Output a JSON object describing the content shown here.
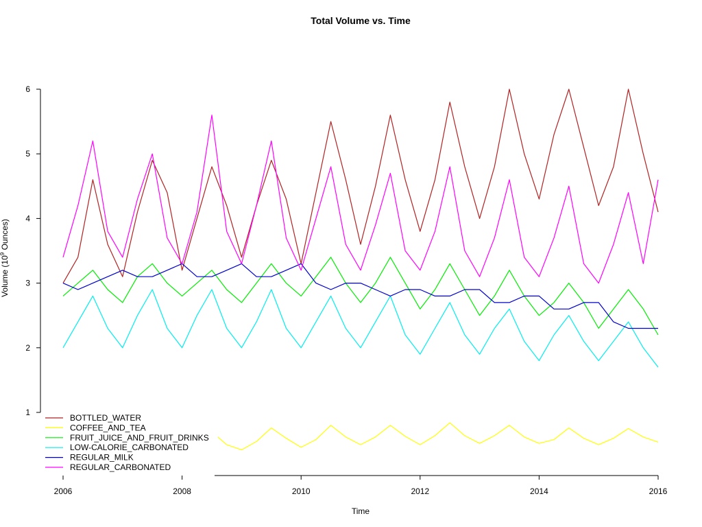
{
  "chart_data": {
    "type": "line",
    "title": "Total Volume vs. Time",
    "xlabel": "Time",
    "ylabel_prefix": "Volume (10",
    "ylabel_exp": "9",
    "ylabel_suffix": " Ounces)",
    "x_ticks": [
      "2006",
      "2008",
      "2010",
      "2012",
      "2014",
      "2016"
    ],
    "y_ticks": [
      "1",
      "2",
      "3",
      "4",
      "5",
      "6"
    ],
    "xlim": [
      2006,
      2016
    ],
    "ylim": [
      1,
      6
    ],
    "legend_position": "bottom-left",
    "series": [
      {
        "name": "BOTTLED_WATER",
        "color": "#b22222",
        "x": [
          2006.0,
          2006.25,
          2006.5,
          2006.75,
          2007.0,
          2007.25,
          2007.5,
          2007.75,
          2008.0,
          2008.25,
          2008.5,
          2008.75,
          2009.0,
          2009.25,
          2009.5,
          2009.75,
          2010.0,
          2010.25,
          2010.5,
          2010.75,
          2011.0,
          2011.25,
          2011.5,
          2011.75,
          2012.0,
          2012.25,
          2012.5,
          2012.75,
          2013.0,
          2013.25,
          2013.5,
          2013.75,
          2014.0,
          2014.25,
          2014.5,
          2014.75,
          2015.0,
          2015.25,
          2015.5,
          2015.75,
          2016.0
        ],
        "y": [
          3.0,
          3.4,
          4.6,
          3.6,
          3.1,
          4.1,
          4.9,
          4.4,
          3.2,
          4.0,
          4.8,
          4.2,
          3.4,
          4.2,
          4.9,
          4.3,
          3.3,
          4.4,
          5.5,
          4.6,
          3.6,
          4.5,
          5.6,
          4.6,
          3.8,
          4.6,
          5.8,
          4.8,
          4.0,
          4.8,
          6.0,
          5.0,
          4.3,
          5.3,
          6.0,
          5.1,
          4.2,
          4.8,
          6.0,
          5.0,
          4.1
        ]
      },
      {
        "name": "COFFEE_AND_TEA",
        "color": "#ffff00",
        "x": [
          2008.6,
          2008.75,
          2009.0,
          2009.25,
          2009.5,
          2009.75,
          2010.0,
          2010.25,
          2010.5,
          2010.75,
          2011.0,
          2011.25,
          2011.5,
          2011.75,
          2012.0,
          2012.25,
          2012.5,
          2012.75,
          2013.0,
          2013.25,
          2013.5,
          2013.75,
          2014.0,
          2014.25,
          2014.5,
          2014.75,
          2015.0,
          2015.25,
          2015.5,
          2015.75,
          2016.0
        ],
        "y": [
          0.62,
          0.5,
          0.42,
          0.55,
          0.76,
          0.6,
          0.46,
          0.58,
          0.8,
          0.62,
          0.5,
          0.62,
          0.8,
          0.63,
          0.5,
          0.64,
          0.84,
          0.64,
          0.52,
          0.64,
          0.8,
          0.62,
          0.52,
          0.58,
          0.76,
          0.6,
          0.5,
          0.6,
          0.75,
          0.62,
          0.54
        ]
      },
      {
        "name": "FRUIT_JUICE_AND_FRUIT_DRINKS",
        "color": "#00ee00",
        "x": [
          2006.0,
          2006.25,
          2006.5,
          2006.75,
          2007.0,
          2007.25,
          2007.5,
          2007.75,
          2008.0,
          2008.25,
          2008.5,
          2008.75,
          2009.0,
          2009.25,
          2009.5,
          2009.75,
          2010.0,
          2010.25,
          2010.5,
          2010.75,
          2011.0,
          2011.25,
          2011.5,
          2011.75,
          2012.0,
          2012.25,
          2012.5,
          2012.75,
          2013.0,
          2013.25,
          2013.5,
          2013.75,
          2014.0,
          2014.25,
          2014.5,
          2014.75,
          2015.0,
          2015.25,
          2015.5,
          2015.75,
          2016.0
        ],
        "y": [
          2.8,
          3.0,
          3.2,
          2.9,
          2.7,
          3.1,
          3.3,
          3.0,
          2.8,
          3.0,
          3.2,
          2.9,
          2.7,
          3.0,
          3.3,
          3.0,
          2.8,
          3.1,
          3.4,
          3.0,
          2.7,
          3.0,
          3.4,
          3.0,
          2.6,
          2.9,
          3.3,
          2.9,
          2.5,
          2.8,
          3.2,
          2.8,
          2.5,
          2.7,
          3.0,
          2.7,
          2.3,
          2.6,
          2.9,
          2.6,
          2.2
        ]
      },
      {
        "name": "LOW-CALORIE_CARBONATED",
        "color": "#00eeee",
        "x": [
          2006.0,
          2006.25,
          2006.5,
          2006.75,
          2007.0,
          2007.25,
          2007.5,
          2007.75,
          2008.0,
          2008.25,
          2008.5,
          2008.75,
          2009.0,
          2009.25,
          2009.5,
          2009.75,
          2010.0,
          2010.25,
          2010.5,
          2010.75,
          2011.0,
          2011.25,
          2011.5,
          2011.75,
          2012.0,
          2012.25,
          2012.5,
          2012.75,
          2013.0,
          2013.25,
          2013.5,
          2013.75,
          2014.0,
          2014.25,
          2014.5,
          2014.75,
          2015.0,
          2015.25,
          2015.5,
          2015.75,
          2016.0
        ],
        "y": [
          2.0,
          2.4,
          2.8,
          2.3,
          2.0,
          2.5,
          2.9,
          2.3,
          2.0,
          2.5,
          2.9,
          2.3,
          2.0,
          2.4,
          2.9,
          2.3,
          2.0,
          2.4,
          2.8,
          2.3,
          2.0,
          2.4,
          2.8,
          2.2,
          1.9,
          2.3,
          2.7,
          2.2,
          1.9,
          2.3,
          2.6,
          2.1,
          1.8,
          2.2,
          2.5,
          2.1,
          1.8,
          2.1,
          2.4,
          2.0,
          1.7
        ]
      },
      {
        "name": "REGULAR_MILK",
        "color": "#0000cd",
        "x": [
          2006.0,
          2006.25,
          2006.5,
          2006.75,
          2007.0,
          2007.25,
          2007.5,
          2007.75,
          2008.0,
          2008.25,
          2008.5,
          2008.75,
          2009.0,
          2009.25,
          2009.5,
          2009.75,
          2010.0,
          2010.25,
          2010.5,
          2010.75,
          2011.0,
          2011.25,
          2011.5,
          2011.75,
          2012.0,
          2012.25,
          2012.5,
          2012.75,
          2013.0,
          2013.25,
          2013.5,
          2013.75,
          2014.0,
          2014.25,
          2014.5,
          2014.75,
          2015.0,
          2015.25,
          2015.5,
          2015.75,
          2016.0
        ],
        "y": [
          3.0,
          2.9,
          3.0,
          3.1,
          3.2,
          3.1,
          3.1,
          3.2,
          3.3,
          3.1,
          3.1,
          3.2,
          3.3,
          3.1,
          3.1,
          3.2,
          3.3,
          3.0,
          2.9,
          3.0,
          3.0,
          2.9,
          2.8,
          2.9,
          2.9,
          2.8,
          2.8,
          2.9,
          2.9,
          2.7,
          2.7,
          2.8,
          2.8,
          2.6,
          2.6,
          2.7,
          2.7,
          2.4,
          2.3,
          2.3,
          2.3
        ]
      },
      {
        "name": "REGULAR_CARBONATED",
        "color": "#ff00ff",
        "x": [
          2006.0,
          2006.25,
          2006.5,
          2006.75,
          2007.0,
          2007.25,
          2007.5,
          2007.75,
          2008.0,
          2008.25,
          2008.5,
          2008.75,
          2009.0,
          2009.25,
          2009.5,
          2009.75,
          2010.0,
          2010.25,
          2010.5,
          2010.75,
          2011.0,
          2011.25,
          2011.5,
          2011.75,
          2012.0,
          2012.25,
          2012.5,
          2012.75,
          2013.0,
          2013.25,
          2013.5,
          2013.75,
          2014.0,
          2014.25,
          2014.5,
          2014.75,
          2015.0,
          2015.25,
          2015.5,
          2015.75,
          2016.0
        ],
        "y": [
          3.4,
          4.2,
          5.2,
          3.8,
          3.4,
          4.3,
          5.0,
          3.7,
          3.3,
          4.1,
          5.6,
          3.8,
          3.3,
          4.2,
          5.2,
          3.7,
          3.2,
          4.0,
          4.8,
          3.6,
          3.2,
          3.9,
          4.7,
          3.5,
          3.2,
          3.8,
          4.8,
          3.5,
          3.1,
          3.7,
          4.6,
          3.4,
          3.1,
          3.7,
          4.5,
          3.3,
          3.0,
          3.6,
          4.4,
          3.3,
          4.6
        ]
      }
    ]
  }
}
